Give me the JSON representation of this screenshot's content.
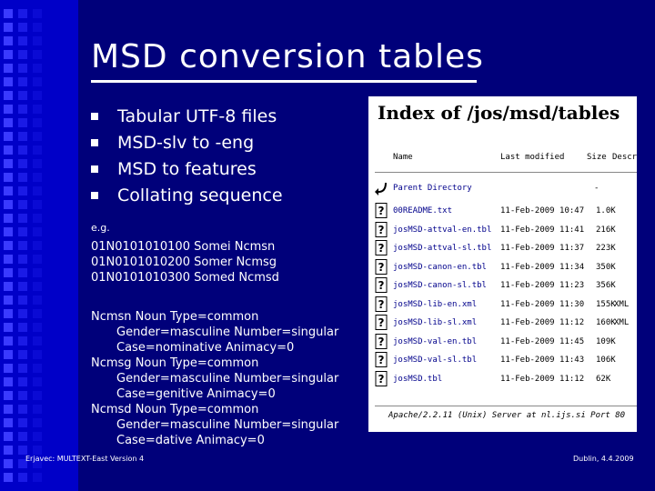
{
  "slide": {
    "title": "MSD conversion tables",
    "bullets": [
      "Tabular UTF-8 files",
      "MSD-slv to -eng",
      "MSD to features",
      "Collating sequence"
    ],
    "eg_label": "e.g.",
    "codes": [
      "01N0101010100 Somei Ncmsn",
      "01N0101010200 Somer Ncmsg",
      "01N0101010300 Somed Ncmsd"
    ],
    "features": [
      {
        "head": "Ncmsn Noun Type=common",
        "lines": [
          "Gender=masculine Number=singular",
          "Case=nominative Animacy=0"
        ]
      },
      {
        "head": "Ncmsg Noun Type=common",
        "lines": [
          "Gender=masculine Number=singular",
          "Case=genitive Animacy=0"
        ]
      },
      {
        "head": "Ncmsd Noun Type=common",
        "lines": [
          "Gender=masculine Number=singular",
          "Case=dative Animacy=0"
        ]
      }
    ],
    "footer_left": "Erjavec: MULTEXT-East Version 4",
    "footer_right": "Dublin, 4.4.2009"
  },
  "listing": {
    "heading": "Index of /jos/msd/tables",
    "columns": {
      "name": "Name",
      "modified": "Last modified",
      "size": "Size",
      "desc": "Descr"
    },
    "parent": {
      "name": "Parent Directory",
      "size": "-"
    },
    "files": [
      {
        "name": "00README.txt",
        "date": "11-Feb-2009 10:47",
        "size": "1.0K",
        "desc": ""
      },
      {
        "name": "josMSD-attval-en.tbl",
        "date": "11-Feb-2009 11:41",
        "size": "216K",
        "desc": ""
      },
      {
        "name": "josMSD-attval-sl.tbl",
        "date": "11-Feb-2009 11:37",
        "size": "223K",
        "desc": ""
      },
      {
        "name": "josMSD-canon-en.tbl",
        "date": "11-Feb-2009 11:34",
        "size": "350K",
        "desc": ""
      },
      {
        "name": "josMSD-canon-sl.tbl",
        "date": "11-Feb-2009 11:23",
        "size": "356K",
        "desc": ""
      },
      {
        "name": "josMSD-lib-en.xml",
        "date": "11-Feb-2009 11:30",
        "size": "155K",
        "desc": "XML"
      },
      {
        "name": "josMSD-lib-sl.xml",
        "date": "11-Feb-2009 11:12",
        "size": "160K",
        "desc": "XML"
      },
      {
        "name": "josMSD-val-en.tbl",
        "date": "11-Feb-2009 11:45",
        "size": "109K",
        "desc": ""
      },
      {
        "name": "josMSD-val-sl.tbl",
        "date": "11-Feb-2009 11:43",
        "size": "106K",
        "desc": ""
      },
      {
        "name": "josMSD.tbl",
        "date": "11-Feb-2009 11:12",
        "size": "62K",
        "desc": ""
      }
    ],
    "address": "Apache/2.2.11 (Unix) Server at nl.ijs.si Port 80"
  }
}
